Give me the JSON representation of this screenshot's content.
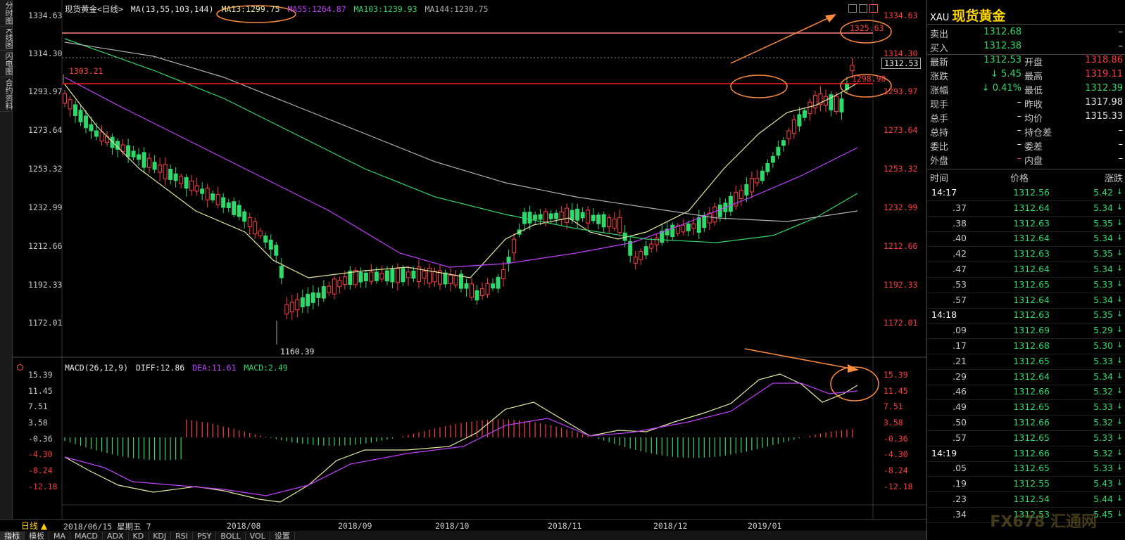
{
  "left_tabs": [
    "分时图",
    "K线图",
    "闪电图",
    "合约资料"
  ],
  "header": {
    "symbol_label": "现货黄金<日线>",
    "ma_prefix": "MA(13,55,103,144)",
    "ma13": "MA13:1299.75",
    "ma55": "MA55:1264.87",
    "ma103": "MA103:1239.93",
    "ma144": "MA144:1230.75"
  },
  "colors": {
    "ma13": "#e8e8a0",
    "ma55": "#c040ff",
    "ma103": "#2fd86b",
    "ma144": "#b0b0b0",
    "up": "#ff4040",
    "down": "#2fd86b",
    "annotation": "#ff8c3c"
  },
  "price_axis_left": [
    "1334.63",
    "1314.30",
    "1293.97",
    "1273.64",
    "1253.32",
    "1232.99",
    "1212.66",
    "1192.33",
    "1172.01"
  ],
  "price_axis_right": [
    "1334.63",
    "1314.30",
    "1293.97",
    "1273.64",
    "1253.32",
    "1232.99",
    "1212.66",
    "1192.33",
    "1172.01"
  ],
  "annotations": {
    "high_label": "1303.21",
    "low_label": "1160.39",
    "peak_label": "1325.63",
    "resistance_label": "1298.98",
    "last_price_tag": "1312.53"
  },
  "macd_header": {
    "prefix": "MACD(26,12,9)",
    "diff": "DIFF:12.86",
    "dea": "DEA:11.61",
    "macd": "MACD:2.49"
  },
  "macd_axis_left": [
    "15.39",
    "11.45",
    "7.51",
    "3.58",
    "-0.36",
    "-4.30",
    "-8.24",
    "-12.18"
  ],
  "macd_axis_right": [
    "15.39",
    "11.45",
    "7.51",
    "3.58",
    "-0.36",
    "-4.30",
    "-8.24",
    "-12.18"
  ],
  "x_dates": [
    "2018/08",
    "2018/09",
    "2018/10",
    "2018/11",
    "2018/12",
    "2019/01"
  ],
  "bottom": {
    "period": "日线",
    "cursor_date": "2018/06/15 星期五 7",
    "tabs": [
      "指标",
      "模板",
      "MA",
      "MACD",
      "ADX",
      "KD",
      "KDJ",
      "RSI",
      "PSY",
      "BOLL",
      "VOL",
      "设置"
    ]
  },
  "quote": {
    "code": "XAU",
    "name": "现货黄金",
    "rows": [
      {
        "l1": "卖出",
        "v1": "1312.68",
        "l2": "",
        "v2": "–"
      },
      {
        "l1": "买入",
        "v1": "1312.38",
        "l2": "",
        "v2": "–"
      },
      {
        "l1": "最新",
        "v1": "1312.53",
        "l2": "开盘",
        "v2": "1318.86"
      },
      {
        "l1": "涨跌",
        "v1": "↓ 5.45",
        "l2": "最高",
        "v2": "1319.11"
      },
      {
        "l1": "涨幅",
        "v1": "↓ 0.41%",
        "l2": "最低",
        "v2": "1312.39"
      },
      {
        "l1": "现手",
        "v1": "–",
        "l2": "昨收",
        "v2": "1317.98"
      },
      {
        "l1": "总手",
        "v1": "–",
        "l2": "均价",
        "v2": "1315.33"
      },
      {
        "l1": "总持",
        "v1": "–",
        "l2": "持仓差",
        "v2": "–"
      },
      {
        "l1": "委比",
        "v1": "–",
        "l2": "委差",
        "v2": "–"
      },
      {
        "l1": "外盘",
        "v1": "–",
        "l2": "内盘",
        "v2": "–"
      }
    ],
    "ticks_header": {
      "time": "时间",
      "price": "价格",
      "change": "涨跌"
    },
    "ticks": [
      {
        "t": "14:17",
        "p": "1312.56",
        "c": "5.42"
      },
      {
        "t": ".37",
        "p": "1312.64",
        "c": "5.34"
      },
      {
        "t": ".38",
        "p": "1312.63",
        "c": "5.35"
      },
      {
        "t": ".40",
        "p": "1312.64",
        "c": "5.34"
      },
      {
        "t": ".42",
        "p": "1312.63",
        "c": "5.35"
      },
      {
        "t": ".47",
        "p": "1312.64",
        "c": "5.34"
      },
      {
        "t": ".53",
        "p": "1312.65",
        "c": "5.33"
      },
      {
        "t": ".57",
        "p": "1312.64",
        "c": "5.34"
      },
      {
        "t": "14:18",
        "p": "1312.63",
        "c": "5.35"
      },
      {
        "t": ".09",
        "p": "1312.69",
        "c": "5.29"
      },
      {
        "t": ".17",
        "p": "1312.68",
        "c": "5.30"
      },
      {
        "t": ".21",
        "p": "1312.65",
        "c": "5.33"
      },
      {
        "t": ".29",
        "p": "1312.64",
        "c": "5.34"
      },
      {
        "t": ".46",
        "p": "1312.66",
        "c": "5.32"
      },
      {
        "t": ".49",
        "p": "1312.65",
        "c": "5.33"
      },
      {
        "t": ".50",
        "p": "1312.66",
        "c": "5.32"
      },
      {
        "t": ".57",
        "p": "1312.65",
        "c": "5.33"
      },
      {
        "t": "14:19",
        "p": "1312.66",
        "c": "5.32"
      },
      {
        "t": ".05",
        "p": "1312.65",
        "c": "5.33"
      },
      {
        "t": ".19",
        "p": "1312.55",
        "c": "5.43"
      },
      {
        "t": ".23",
        "p": "1312.54",
        "c": "5.44"
      },
      {
        "t": ".34",
        "p": "1312.53",
        "c": "5.45"
      }
    ]
  },
  "watermark": "FX678 汇通网"
}
